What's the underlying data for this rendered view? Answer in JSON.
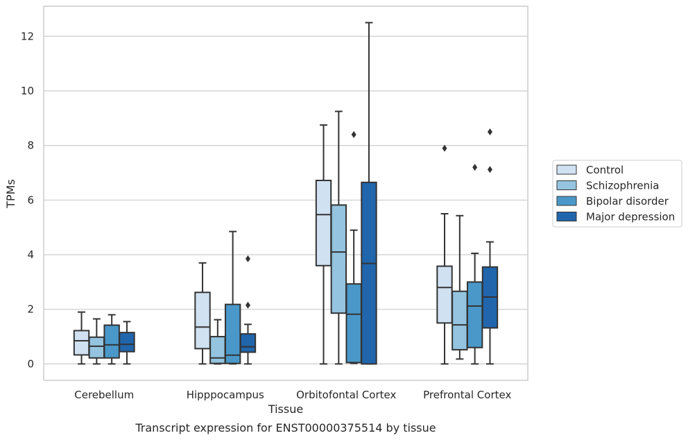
{
  "chart_data": {
    "type": "box",
    "title": "",
    "caption": "Transcript expression for ENST00000375514 by tissue",
    "xlabel": "Tissue",
    "ylabel": "TPMs",
    "ylim": [
      -0.6,
      13.1
    ],
    "yticks": [
      0,
      2,
      4,
      6,
      8,
      10,
      12
    ],
    "grid": true,
    "legend_position": "right",
    "categories": [
      "Cerebellum",
      "Hipppocampus",
      "Orbitofontal Cortex",
      "Prefrontal Cortex"
    ],
    "series": [
      {
        "name": "Control",
        "color": "#d0e1f2",
        "boxes": [
          {
            "whislo": 0.0,
            "q1": 0.33,
            "med": 0.85,
            "q3": 1.22,
            "whishi": 1.9,
            "fliers": []
          },
          {
            "whislo": 0.0,
            "q1": 0.56,
            "med": 1.35,
            "q3": 2.62,
            "whishi": 3.7,
            "fliers": []
          },
          {
            "whislo": 0.0,
            "q1": 3.6,
            "med": 5.47,
            "q3": 6.72,
            "whishi": 8.75,
            "fliers": []
          },
          {
            "whislo": 0.0,
            "q1": 1.5,
            "med": 2.8,
            "q3": 3.58,
            "whishi": 5.5,
            "fliers": [
              7.9
            ]
          }
        ]
      },
      {
        "name": "Schizophrenia",
        "color": "#94c4df",
        "boxes": [
          {
            "whislo": 0.0,
            "q1": 0.22,
            "med": 0.65,
            "q3": 0.98,
            "whishi": 1.65,
            "fliers": []
          },
          {
            "whislo": 0.0,
            "q1": 0.02,
            "med": 0.22,
            "q3": 1.0,
            "whishi": 1.62,
            "fliers": []
          },
          {
            "whislo": 0.0,
            "q1": 1.86,
            "med": 4.1,
            "q3": 5.82,
            "whishi": 9.25,
            "fliers": []
          },
          {
            "whislo": 0.18,
            "q1": 0.52,
            "med": 1.43,
            "q3": 2.66,
            "whishi": 5.43,
            "fliers": []
          }
        ]
      },
      {
        "name": "Bipolar disorder",
        "color": "#4a98c9",
        "boxes": [
          {
            "whislo": 0.0,
            "q1": 0.22,
            "med": 0.7,
            "q3": 1.42,
            "whishi": 1.8,
            "fliers": []
          },
          {
            "whislo": 0.0,
            "q1": 0.02,
            "med": 0.32,
            "q3": 2.18,
            "whishi": 4.85,
            "fliers": []
          },
          {
            "whislo": 0.02,
            "q1": 0.05,
            "med": 1.82,
            "q3": 2.93,
            "whishi": 4.9,
            "fliers": [
              8.4
            ]
          },
          {
            "whislo": 0.0,
            "q1": 0.6,
            "med": 2.12,
            "q3": 3.0,
            "whishi": 4.05,
            "fliers": [
              7.2
            ]
          }
        ]
      },
      {
        "name": "Major depression",
        "color": "#2166ac",
        "boxes": [
          {
            "whislo": 0.0,
            "q1": 0.45,
            "med": 0.72,
            "q3": 1.15,
            "whishi": 1.55,
            "fliers": []
          },
          {
            "whislo": 0.0,
            "q1": 0.43,
            "med": 0.63,
            "q3": 1.1,
            "whishi": 1.45,
            "fliers": [
              3.85,
              2.15
            ]
          },
          {
            "whislo": 0.0,
            "q1": 0.0,
            "med": 3.68,
            "q3": 6.65,
            "whishi": 12.5,
            "fliers": []
          },
          {
            "whislo": 0.0,
            "q1": 1.32,
            "med": 2.45,
            "q3": 3.55,
            "whishi": 4.47,
            "fliers": [
              8.5,
              7.12
            ]
          }
        ]
      }
    ]
  }
}
